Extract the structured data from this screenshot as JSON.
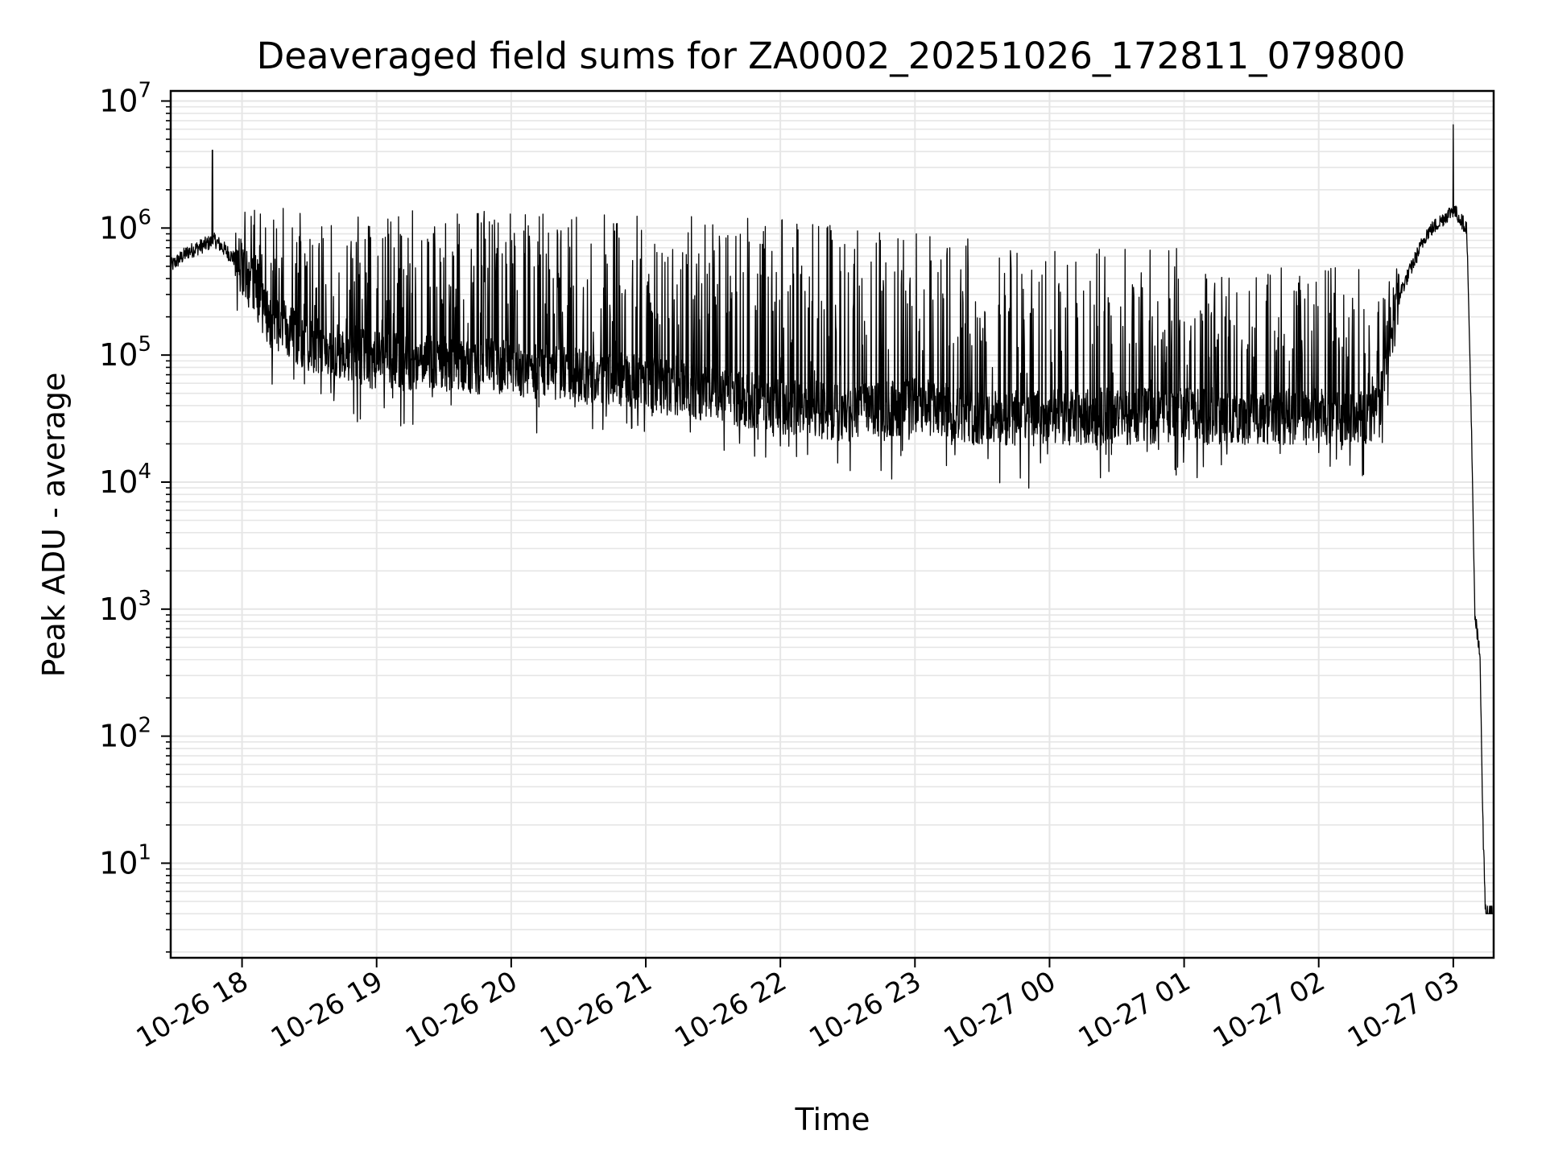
{
  "chart_data": {
    "type": "line",
    "title": "Deaveraged field sums for ZA0002_20251026_172811_079800",
    "xlabel": "Time",
    "ylabel": "Peak ADU - average",
    "yscale": "log",
    "ylim": [
      1.8,
      12000000
    ],
    "xlim_hours": [
      17.47,
      27.3
    ],
    "grid": true,
    "line_color": "#000000",
    "grid_color": "#e6e6e6",
    "x_ticks": [
      {
        "hour": 18,
        "label": "10-26 18"
      },
      {
        "hour": 19,
        "label": "10-26 19"
      },
      {
        "hour": 20,
        "label": "10-26 20"
      },
      {
        "hour": 21,
        "label": "10-26 21"
      },
      {
        "hour": 22,
        "label": "10-26 22"
      },
      {
        "hour": 23,
        "label": "10-26 23"
      },
      {
        "hour": 24,
        "label": "10-27 00"
      },
      {
        "hour": 25,
        "label": "10-27 01"
      },
      {
        "hour": 26,
        "label": "10-27 02"
      },
      {
        "hour": 27,
        "label": "10-27 03"
      }
    ],
    "y_ticks": [
      {
        "exp": 1,
        "base": "10",
        "sup": "1"
      },
      {
        "exp": 2,
        "base": "10",
        "sup": "2"
      },
      {
        "exp": 3,
        "base": "10",
        "sup": "3"
      },
      {
        "exp": 4,
        "base": "10",
        "sup": "4"
      },
      {
        "exp": 5,
        "base": "10",
        "sup": "5"
      },
      {
        "exp": 6,
        "base": "10",
        "sup": "6"
      },
      {
        "exp": 7,
        "base": "10",
        "sup": "7"
      }
    ],
    "series": [
      {
        "name": "Peak ADU - average",
        "baseline_hours": [
          17.47,
          17.6,
          17.8,
          18.0,
          18.2,
          18.5,
          19.0,
          19.5,
          20.0,
          20.5,
          21.0,
          21.5,
          22.0,
          22.5,
          23.0,
          23.5,
          24.0,
          24.5,
          25.0,
          25.5,
          26.0,
          26.4,
          26.6,
          26.8,
          27.0,
          27.1,
          27.13,
          27.16,
          27.2,
          27.22,
          27.24,
          27.3
        ],
        "baseline_values": [
          500000,
          650000,
          800000,
          500000,
          200000,
          120000,
          90000,
          85000,
          80000,
          70000,
          60000,
          50000,
          40000,
          35000,
          40000,
          32000,
          32000,
          33000,
          33000,
          33000,
          33000,
          32000,
          300000,
          900000,
          1400000,
          1000000,
          50000,
          900,
          400,
          20,
          4,
          4
        ],
        "spike_max_values": [
          1500000,
          1400000,
          1300000,
          1200000,
          1000000,
          700000,
          500000,
          1200000
        ],
        "peak_values": [
          {
            "hour": 17.78,
            "value": 4100000
          },
          {
            "hour": 27.0,
            "value": 6500000
          }
        ],
        "min_value": 4
      }
    ]
  }
}
